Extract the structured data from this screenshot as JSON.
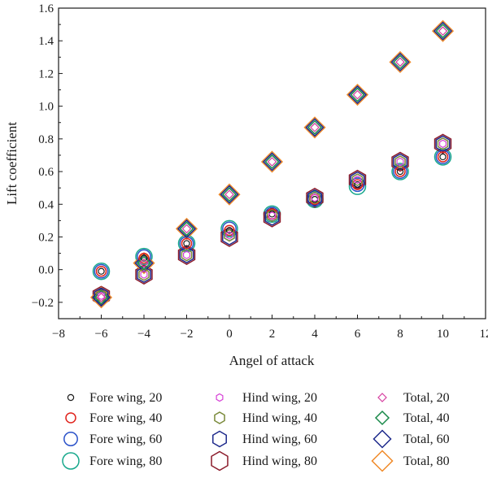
{
  "chart_data": {
    "type": "scatter",
    "xlabel": "Angel of attack",
    "ylabel": "Lift coefficient",
    "xlim": [
      -8,
      12
    ],
    "ylim": [
      -0.3,
      1.6
    ],
    "xticks": [
      -8,
      -6,
      -4,
      -2,
      0,
      2,
      4,
      6,
      8,
      10,
      12
    ],
    "yticks": [
      -0.2,
      0.0,
      0.2,
      0.4,
      0.6,
      0.8,
      1.0,
      1.2,
      1.4,
      1.6
    ],
    "xtick_labels": [
      "−8",
      "−6",
      "−4",
      "−2",
      "0",
      "2",
      "4",
      "6",
      "8",
      "10",
      "12"
    ],
    "ytick_labels": [
      "−0.2",
      "0.0",
      "0.2",
      "0.4",
      "0.6",
      "0.8",
      "1.0",
      "1.2",
      "1.4",
      "1.6"
    ],
    "grid": false,
    "legend_position": "bottom",
    "x": [
      -6,
      -4,
      -2,
      0,
      2,
      4,
      6,
      8,
      10
    ],
    "series": [
      {
        "name": "Fore wing, 20",
        "marker": "circle",
        "size": "small",
        "color": "#1a1a1a",
        "values": [
          -0.01,
          0.07,
          0.16,
          0.24,
          0.34,
          0.43,
          0.52,
          0.6,
          0.69
        ]
      },
      {
        "name": "Fore wing, 40",
        "marker": "circle",
        "size": "medium",
        "color": "#e0231c",
        "values": [
          -0.01,
          0.07,
          0.16,
          0.24,
          0.34,
          0.43,
          0.52,
          0.6,
          0.69
        ]
      },
      {
        "name": "Fore wing, 60",
        "marker": "circle",
        "size": "large",
        "color": "#2b52c9",
        "values": [
          -0.01,
          0.08,
          0.16,
          0.25,
          0.34,
          0.43,
          0.52,
          0.6,
          0.69
        ]
      },
      {
        "name": "Fore wing, 80",
        "marker": "circle",
        "size": "xlarge",
        "color": "#17a88c",
        "values": [
          -0.01,
          0.08,
          0.16,
          0.25,
          0.34,
          0.43,
          0.51,
          0.6,
          0.69
        ]
      },
      {
        "name": "Hind wing, 20",
        "marker": "hexagon",
        "size": "small",
        "color": "#d63fd6",
        "values": [
          -0.16,
          -0.03,
          0.09,
          0.21,
          0.33,
          0.44,
          0.55,
          0.66,
          0.77
        ]
      },
      {
        "name": "Hind wing, 40",
        "marker": "hexagon",
        "size": "medium",
        "color": "#7a8a3a",
        "values": [
          -0.16,
          -0.03,
          0.09,
          0.21,
          0.33,
          0.44,
          0.55,
          0.66,
          0.77
        ]
      },
      {
        "name": "Hind wing, 60",
        "marker": "hexagon",
        "size": "large",
        "color": "#1e2a8c",
        "values": [
          -0.16,
          -0.03,
          0.09,
          0.2,
          0.32,
          0.44,
          0.55,
          0.66,
          0.77
        ]
      },
      {
        "name": "Hind wing, 80",
        "marker": "hexagon",
        "size": "xlarge",
        "color": "#8b1a2a",
        "values": [
          -0.16,
          -0.03,
          0.09,
          0.2,
          0.32,
          0.44,
          0.55,
          0.66,
          0.77
        ]
      },
      {
        "name": "Total, 20",
        "marker": "diamond",
        "size": "small",
        "color": "#d63fa0",
        "values": [
          -0.17,
          0.04,
          0.25,
          0.46,
          0.66,
          0.87,
          1.07,
          1.27,
          1.46
        ]
      },
      {
        "name": "Total, 40",
        "marker": "diamond",
        "size": "medium",
        "color": "#1a8a4a",
        "values": [
          -0.17,
          0.04,
          0.25,
          0.46,
          0.66,
          0.87,
          1.07,
          1.27,
          1.46
        ]
      },
      {
        "name": "Total, 60",
        "marker": "diamond",
        "size": "large",
        "color": "#1e2a8c",
        "values": [
          -0.17,
          0.04,
          0.25,
          0.46,
          0.66,
          0.87,
          1.07,
          1.27,
          1.46
        ]
      },
      {
        "name": "Total, 80",
        "marker": "diamond",
        "size": "xlarge",
        "color": "#f08a28",
        "values": [
          -0.17,
          0.04,
          0.25,
          0.46,
          0.66,
          0.87,
          1.07,
          1.27,
          1.46
        ]
      }
    ]
  }
}
